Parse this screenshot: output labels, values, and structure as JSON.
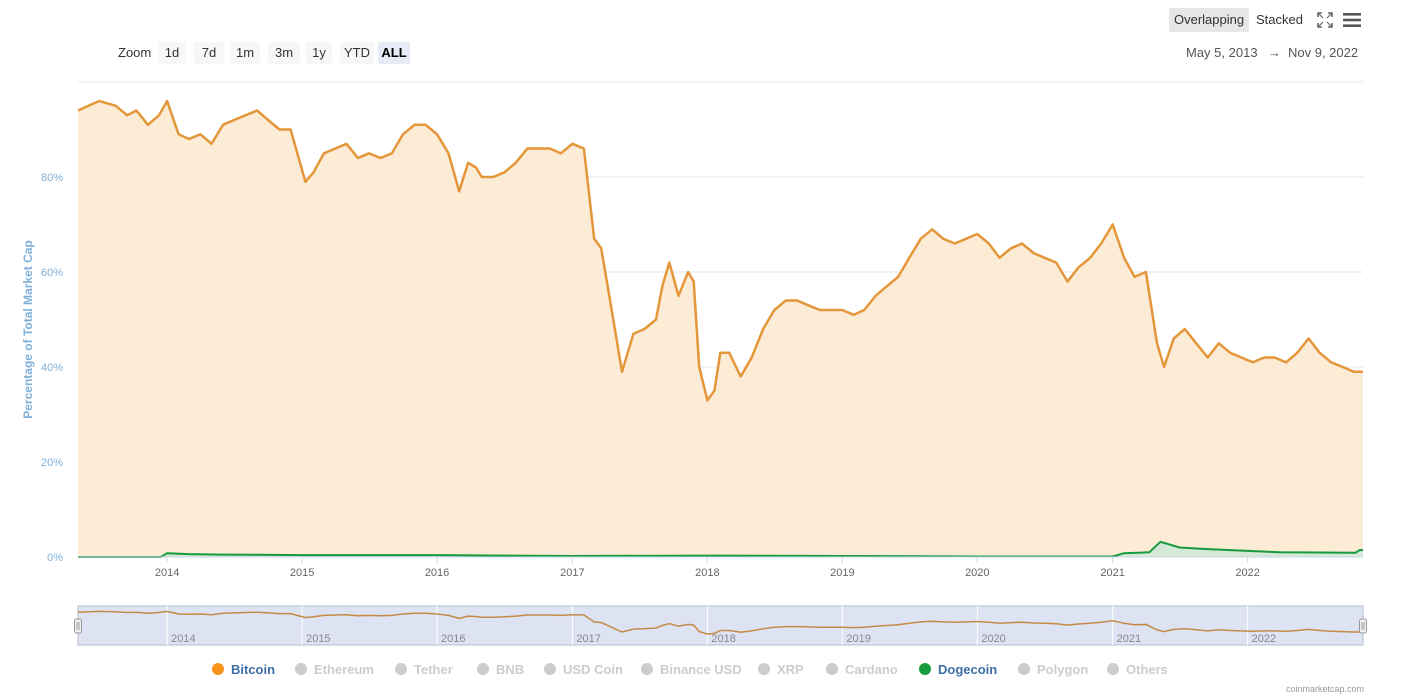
{
  "toolbar": {
    "overlapping": "Overlapping",
    "stacked": "Stacked"
  },
  "zoom": {
    "label": "Zoom",
    "buttons": [
      "1d",
      "7d",
      "1m",
      "3m",
      "1y",
      "YTD",
      "ALL"
    ],
    "active": "ALL"
  },
  "range": {
    "from": "May 5, 2013",
    "arrow": "→",
    "to": "Nov 9, 2022"
  },
  "credit": "coinmarketcap.com",
  "colors": {
    "bitcoin": "#e4963a",
    "bitcoin_fill": "#fcebd5",
    "dogecoin": "#169a3f",
    "axis_label": "#7fb0d9",
    "navigator_bg": "#dde3f2"
  },
  "legend": [
    {
      "name": "Bitcoin",
      "active": true,
      "color": "#f7931a"
    },
    {
      "name": "Ethereum",
      "active": false
    },
    {
      "name": "Tether",
      "active": false
    },
    {
      "name": "BNB",
      "active": false
    },
    {
      "name": "USD Coin",
      "active": false
    },
    {
      "name": "Binance USD",
      "active": false
    },
    {
      "name": "XRP",
      "active": false
    },
    {
      "name": "Cardano",
      "active": false
    },
    {
      "name": "Dogecoin",
      "active": true,
      "color": "#169a3f"
    },
    {
      "name": "Polygon",
      "active": false
    },
    {
      "name": "Others",
      "active": false
    }
  ],
  "chart_data": {
    "type": "area",
    "ylabel": "Percentage of Total Market Cap",
    "xlabel": "",
    "ylim": [
      0,
      100
    ],
    "xlim": [
      "2013-05-05",
      "2022-11-09"
    ],
    "y_ticks": [
      "0%",
      "20%",
      "40%",
      "60%",
      "80%"
    ],
    "x_ticks": [
      "2014",
      "2015",
      "2016",
      "2017",
      "2018",
      "2019",
      "2020",
      "2021",
      "2022"
    ],
    "grid": true,
    "legend_position": "bottom",
    "series": [
      {
        "name": "Bitcoin",
        "x": [
          "2013-05-05",
          "2013-07-01",
          "2013-08-15",
          "2013-09-15",
          "2013-10-10",
          "2013-11-10",
          "2013-12-10",
          "2014-01-01",
          "2014-02-01",
          "2014-03-01",
          "2014-04-01",
          "2014-05-01",
          "2014-06-01",
          "2014-07-01",
          "2014-08-01",
          "2014-09-01",
          "2014-10-01",
          "2014-11-01",
          "2014-12-01",
          "2015-01-10",
          "2015-02-01",
          "2015-03-01",
          "2015-04-01",
          "2015-05-01",
          "2015-06-01",
          "2015-07-01",
          "2015-08-01",
          "2015-09-01",
          "2015-10-01",
          "2015-11-01",
          "2015-12-01",
          "2016-01-01",
          "2016-02-01",
          "2016-03-01",
          "2016-03-25",
          "2016-04-15",
          "2016-05-01",
          "2016-06-01",
          "2016-07-01",
          "2016-08-01",
          "2016-09-01",
          "2016-10-01",
          "2016-11-01",
          "2016-12-01",
          "2017-01-01",
          "2017-02-01",
          "2017-03-01",
          "2017-03-20",
          "2017-04-15",
          "2017-05-15",
          "2017-06-15",
          "2017-07-15",
          "2017-08-15",
          "2017-09-01",
          "2017-09-20",
          "2017-10-15",
          "2017-11-10",
          "2017-11-25",
          "2017-12-10",
          "2018-01-01",
          "2018-01-20",
          "2018-02-05",
          "2018-03-01",
          "2018-04-01",
          "2018-05-01",
          "2018-06-01",
          "2018-07-01",
          "2018-08-01",
          "2018-09-01",
          "2018-10-01",
          "2018-11-01",
          "2018-12-01",
          "2019-01-01",
          "2019-02-01",
          "2019-03-01",
          "2019-04-01",
          "2019-05-01",
          "2019-06-01",
          "2019-07-01",
          "2019-08-01",
          "2019-09-01",
          "2019-10-01",
          "2019-11-01",
          "2019-12-01",
          "2020-01-01",
          "2020-02-01",
          "2020-03-01",
          "2020-04-01",
          "2020-05-01",
          "2020-06-01",
          "2020-07-01",
          "2020-08-01",
          "2020-09-01",
          "2020-10-01",
          "2020-11-01",
          "2020-12-01",
          "2021-01-01",
          "2021-02-01",
          "2021-03-01",
          "2021-04-01",
          "2021-05-01",
          "2021-05-20",
          "2021-06-15",
          "2021-07-15",
          "2021-08-15",
          "2021-09-15",
          "2021-10-15",
          "2021-11-15",
          "2021-12-15",
          "2022-01-15",
          "2022-02-15",
          "2022-03-15",
          "2022-04-15",
          "2022-05-15",
          "2022-06-15",
          "2022-07-15",
          "2022-08-15",
          "2022-09-15",
          "2022-10-15",
          "2022-11-09"
        ],
        "values": [
          94,
          96,
          95,
          93,
          94,
          91,
          93,
          96,
          89,
          88,
          89,
          87,
          91,
          92,
          93,
          94,
          92,
          90,
          90,
          79,
          81,
          85,
          86,
          87,
          84,
          85,
          84,
          85,
          89,
          91,
          91,
          89,
          85,
          77,
          83,
          82,
          80,
          80,
          81,
          83,
          86,
          86,
          86,
          85,
          87,
          86,
          67,
          65,
          53,
          39,
          47,
          48,
          50,
          57,
          62,
          55,
          60,
          58,
          40,
          33,
          35,
          43,
          43,
          38,
          42,
          48,
          52,
          54,
          54,
          53,
          52,
          52,
          52,
          51,
          52,
          55,
          57,
          59,
          63,
          67,
          69,
          67,
          66,
          67,
          68,
          66,
          63,
          65,
          66,
          64,
          63,
          62,
          58,
          61,
          63,
          66,
          70,
          63,
          59,
          60,
          45,
          40,
          46,
          48,
          45,
          42,
          45,
          43,
          42,
          41,
          42,
          42,
          41,
          43,
          46,
          43,
          41,
          40,
          39,
          39
        ]
      },
      {
        "name": "Dogecoin",
        "x": [
          "2013-05-05",
          "2013-12-15",
          "2014-01-01",
          "2014-03-01",
          "2014-06-01",
          "2015-01-01",
          "2016-01-01",
          "2017-01-01",
          "2018-01-01",
          "2019-01-01",
          "2020-01-01",
          "2021-01-01",
          "2021-02-01",
          "2021-04-10",
          "2021-05-10",
          "2021-06-01",
          "2021-07-01",
          "2021-09-01",
          "2021-12-01",
          "2022-04-01",
          "2022-10-20",
          "2022-11-01",
          "2022-11-09"
        ],
        "values": [
          0,
          0,
          0.8,
          0.6,
          0.5,
          0.4,
          0.4,
          0.2,
          0.3,
          0.2,
          0.1,
          0.1,
          0.8,
          1.0,
          3.2,
          2.7,
          2.0,
          1.7,
          1.4,
          1.0,
          0.9,
          1.5,
          1.4
        ]
      }
    ]
  }
}
